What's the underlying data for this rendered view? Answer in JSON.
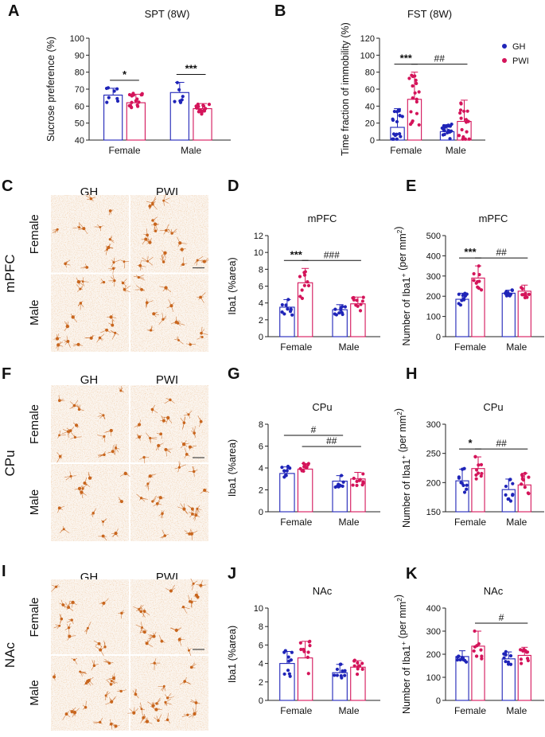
{
  "colors": {
    "gh": "#1f24b8",
    "pwi": "#d4145a",
    "stain": "#c8661e"
  },
  "legend": {
    "gh": "GH",
    "pwi": "PWI"
  },
  "micrographs": [
    {
      "letter": "C",
      "region": "mPFC",
      "col_labels": [
        "GH",
        "PWI"
      ],
      "row_labels": [
        "Female",
        "Male"
      ]
    },
    {
      "letter": "F",
      "region": "CPu",
      "col_labels": [
        "GH",
        "PWI"
      ],
      "row_labels": [
        "Female",
        "Male"
      ]
    },
    {
      "letter": "I",
      "region": "NAc",
      "col_labels": [
        "GH",
        "PWI"
      ],
      "row_labels": [
        "Female",
        "Male"
      ]
    }
  ],
  "chart_data": [
    {
      "panel": "A",
      "type": "bar",
      "title": "SPT (8W)",
      "ylabel": "Sucrose preference (%)",
      "ylim": [
        40,
        100
      ],
      "yticks": [
        40,
        50,
        60,
        70,
        80,
        90,
        100
      ],
      "categories": [
        "Female",
        "Male"
      ],
      "series": [
        {
          "name": "GH",
          "values": [
            66.5,
            68.0
          ],
          "err": [
            4,
            6
          ]
        },
        {
          "name": "PWI",
          "values": [
            62.0,
            58.5
          ],
          "err": [
            5,
            3
          ]
        }
      ],
      "significance": [
        {
          "label": "*",
          "between": [
            "Female GH",
            "Female PWI"
          ]
        },
        {
          "label": "***",
          "between": [
            "Male GH",
            "Male PWI"
          ]
        }
      ]
    },
    {
      "panel": "B",
      "type": "bar",
      "title": "FST (8W)",
      "ylabel": "Time fraction of immobility (%)",
      "ylim": [
        0,
        120
      ],
      "yticks": [
        0,
        20,
        40,
        60,
        80,
        100,
        120
      ],
      "categories": [
        "Female",
        "Male"
      ],
      "series": [
        {
          "name": "GH",
          "values": [
            15,
            10
          ],
          "err": [
            22,
            8
          ]
        },
        {
          "name": "PWI",
          "values": [
            48,
            22
          ],
          "err": [
            32,
            25
          ]
        }
      ],
      "significance": [
        {
          "label": "***",
          "between": [
            "Female GH",
            "Female PWI"
          ]
        },
        {
          "label": "##",
          "between": [
            "Female PWI",
            "Male PWI"
          ]
        }
      ]
    },
    {
      "panel": "D",
      "type": "bar",
      "title": "mPFC",
      "ylabel": "Iba1 (%area)",
      "ylim": [
        0,
        12
      ],
      "yticks": [
        0,
        2,
        4,
        6,
        8,
        10,
        12
      ],
      "categories": [
        "Female",
        "Male"
      ],
      "series": [
        {
          "name": "GH",
          "values": [
            3.5,
            3.2
          ],
          "err": [
            0.9,
            0.6
          ]
        },
        {
          "name": "PWI",
          "values": [
            6.4,
            3.9
          ],
          "err": [
            1.7,
            0.8
          ]
        }
      ],
      "significance": [
        {
          "label": "***",
          "between": [
            "Female GH",
            "Female PWI"
          ]
        },
        {
          "label": "###",
          "between": [
            "Female PWI",
            "Male PWI"
          ]
        }
      ]
    },
    {
      "panel": "E",
      "type": "bar",
      "title": "mPFC",
      "ylabel": "Number of  Iba1+ (per mm2)",
      "ylim": [
        0,
        500
      ],
      "yticks": [
        0,
        100,
        200,
        300,
        400,
        500
      ],
      "categories": [
        "Female",
        "Male"
      ],
      "series": [
        {
          "name": "GH",
          "values": [
            185,
            215
          ],
          "err": [
            30,
            15
          ]
        },
        {
          "name": "PWI",
          "values": [
            290,
            225
          ],
          "err": [
            60,
            30
          ]
        }
      ],
      "significance": [
        {
          "label": "***",
          "between": [
            "Female GH",
            "Female PWI"
          ]
        },
        {
          "label": "##",
          "between": [
            "Female PWI",
            "Male PWI"
          ]
        }
      ]
    },
    {
      "panel": "G",
      "type": "bar",
      "title": "CPu",
      "ylabel": "Iba1 (%area)",
      "ylim": [
        0,
        8
      ],
      "yticks": [
        0,
        2,
        4,
        6,
        8
      ],
      "categories": [
        "Female",
        "Male"
      ],
      "series": [
        {
          "name": "GH",
          "values": [
            3.5,
            2.8
          ],
          "err": [
            0.6,
            0.5
          ]
        },
        {
          "name": "PWI",
          "values": [
            3.9,
            3.0
          ],
          "err": [
            0.5,
            0.6
          ]
        }
      ],
      "significance": [
        {
          "label": "#",
          "between": [
            "Female GH",
            "Male GH"
          ]
        },
        {
          "label": "##",
          "between": [
            "Female PWI",
            "Male PWI"
          ]
        }
      ]
    },
    {
      "panel": "H",
      "type": "bar",
      "title": "CPu",
      "ylabel": "Number of  Iba1+ (per mm2)",
      "ylim": [
        150,
        300
      ],
      "yticks": [
        150,
        200,
        250,
        300
      ],
      "categories": [
        "Female",
        "Male"
      ],
      "series": [
        {
          "name": "GH",
          "values": [
            203,
            188
          ],
          "err": [
            20,
            18
          ]
        },
        {
          "name": "PWI",
          "values": [
            224,
            196
          ],
          "err": [
            20,
            20
          ]
        }
      ],
      "significance": [
        {
          "label": "*",
          "between": [
            "Female GH",
            "Female PWI"
          ]
        },
        {
          "label": "##",
          "between": [
            "Female PWI",
            "Male PWI"
          ]
        }
      ]
    },
    {
      "panel": "J",
      "type": "bar",
      "title": "NAc",
      "ylabel": "Iba1 (%area)",
      "ylim": [
        0,
        10
      ],
      "yticks": [
        0,
        2,
        4,
        6,
        8,
        10
      ],
      "categories": [
        "Female",
        "Male"
      ],
      "series": [
        {
          "name": "GH",
          "values": [
            4.0,
            3.0
          ],
          "err": [
            1.3,
            0.9
          ]
        },
        {
          "name": "PWI",
          "values": [
            4.6,
            3.6
          ],
          "err": [
            1.8,
            0.7
          ]
        }
      ],
      "significance": []
    },
    {
      "panel": "K",
      "type": "bar",
      "title": "NAc",
      "ylabel": "Number of  Iba1+ (per mm2)",
      "ylim": [
        0,
        400
      ],
      "yticks": [
        0,
        100,
        200,
        300,
        400
      ],
      "categories": [
        "Female",
        "Male"
      ],
      "series": [
        {
          "name": "GH",
          "values": [
            190,
            180
          ],
          "err": [
            25,
            30
          ]
        },
        {
          "name": "PWI",
          "values": [
            235,
            195
          ],
          "err": [
            65,
            35
          ]
        }
      ],
      "significance": [
        {
          "label": "#",
          "between": [
            "Female PWI",
            "Male PWI"
          ]
        }
      ]
    }
  ]
}
